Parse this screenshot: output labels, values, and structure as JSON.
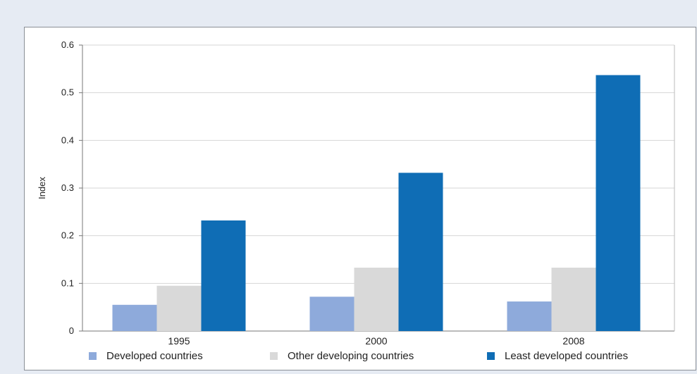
{
  "chart_data": {
    "type": "bar",
    "title": "",
    "xlabel": "",
    "ylabel": "Index",
    "ylim": [
      0,
      0.6
    ],
    "yticks": [
      "0",
      "0.1",
      "0.2",
      "0.3",
      "0.4",
      "0.5",
      "0.6"
    ],
    "categories": [
      "1995",
      "2000",
      "2008"
    ],
    "grid": true,
    "legend_position": "bottom",
    "series": [
      {
        "name": "Developed countries",
        "color": "#8eaadb",
        "values": [
          0.055,
          0.072,
          0.062
        ]
      },
      {
        "name": "Other developing countries",
        "color": "#d9d9d9",
        "values": [
          0.095,
          0.133,
          0.133
        ]
      },
      {
        "name": "Least developed countries",
        "color": "#0f6db5",
        "values": [
          0.232,
          0.332,
          0.537
        ]
      }
    ]
  }
}
